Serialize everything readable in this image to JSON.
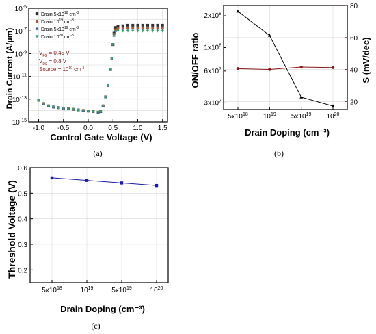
{
  "chart_data": [
    {
      "type": "scatter",
      "caption": "(a)",
      "xlabel": "Control Gate Voltage (V)",
      "ylabel": "Drain Current (A/μm)",
      "xlim": [
        -1.2,
        1.6
      ],
      "xticks": [
        "-1.0",
        "-0.5",
        "0.0",
        "0.5",
        "1.0",
        "1.5"
      ],
      "xtick_values": [
        -1.0,
        -0.5,
        0.0,
        0.5,
        1.0,
        1.5
      ],
      "ylog": true,
      "ylim_exp": [
        -15,
        -5
      ],
      "yticks": [
        {
          "base": "10",
          "exp": "-5",
          "e": -5
        },
        {
          "base": "10",
          "exp": "-7",
          "e": -7
        },
        {
          "base": "10",
          "exp": "-9",
          "e": -9
        },
        {
          "base": "10",
          "exp": "-11",
          "e": -11
        },
        {
          "base": "10",
          "exp": "-13",
          "e": -13
        },
        {
          "base": "10",
          "exp": "-15",
          "e": -15
        }
      ],
      "legend": {
        "placement": "top-left",
        "entries": [
          {
            "text": "Drain 5x10",
            "sup": "18",
            "unit": " cm",
            "usup": "-3",
            "color": "#333333",
            "marker": "square"
          },
          {
            "text": "Drain 10",
            "sup": "19",
            "unit": " cm",
            "usup": "-3",
            "color": "#b2553a",
            "marker": "circle"
          },
          {
            "text": "Drain 5x10",
            "sup": "19",
            "unit": " cm",
            "usup": "-3",
            "color": "#2f5fa8",
            "marker": "triangle-up"
          },
          {
            "text": "Drain 10",
            "sup": "20",
            "unit": " cm",
            "usup": "-3",
            "color": "#3aa26e",
            "marker": "triangle-down"
          }
        ]
      },
      "annotations": [
        {
          "a": "V",
          "sub": "FG",
          "b": " = 0.45 V"
        },
        {
          "a": "V",
          "sub": "DS",
          "b": " = 0.8 V"
        },
        {
          "a": "Source = 10",
          "sup": "19",
          "b": " cm",
          "sup2": "-3"
        }
      ],
      "x": [
        -1.0,
        -0.9,
        -0.8,
        -0.7,
        -0.6,
        -0.5,
        -0.4,
        -0.3,
        -0.2,
        -0.1,
        0.0,
        0.1,
        0.2,
        0.25,
        0.3,
        0.35,
        0.4,
        0.45,
        0.48,
        0.5,
        0.52,
        0.55,
        0.6,
        0.7,
        0.8,
        0.9,
        1.0,
        1.1,
        1.2,
        1.3,
        1.4,
        1.5
      ],
      "series": [
        {
          "log_y": [
            -13.1,
            -13.4,
            -13.6,
            -13.7,
            -13.75,
            -13.8,
            -13.85,
            -13.9,
            -13.95,
            -14.0,
            -14.05,
            -14.1,
            -14.15,
            -14.1,
            -13.6,
            -12.8,
            -11.8,
            -10.4,
            -9.4,
            -8.2,
            -7.2,
            -6.7,
            -6.6,
            -6.55,
            -6.5,
            -6.5,
            -6.5,
            -6.5,
            -6.5,
            -6.5,
            -6.5,
            -6.5
          ]
        },
        {
          "log_y": [
            -13.1,
            -13.4,
            -13.6,
            -13.7,
            -13.75,
            -13.8,
            -13.85,
            -13.9,
            -13.95,
            -14.0,
            -14.05,
            -14.1,
            -14.15,
            -14.1,
            -13.6,
            -12.8,
            -11.8,
            -10.4,
            -9.4,
            -8.2,
            -7.3,
            -6.9,
            -6.8,
            -6.75,
            -6.75,
            -6.75,
            -6.75,
            -6.75,
            -6.75,
            -6.75,
            -6.75,
            -6.75
          ]
        },
        {
          "log_y": [
            -13.1,
            -13.4,
            -13.6,
            -13.7,
            -13.75,
            -13.8,
            -13.85,
            -13.9,
            -13.95,
            -14.0,
            -14.05,
            -14.1,
            -14.15,
            -14.1,
            -13.6,
            -12.8,
            -11.8,
            -10.4,
            -9.4,
            -8.2,
            -7.4,
            -7.0,
            -6.95,
            -6.95,
            -6.95,
            -6.95,
            -6.95,
            -6.95,
            -6.95,
            -6.95,
            -6.95,
            -6.95
          ]
        },
        {
          "log_y": [
            -13.1,
            -13.4,
            -13.6,
            -13.7,
            -13.75,
            -13.8,
            -13.85,
            -13.9,
            -13.95,
            -14.0,
            -14.05,
            -14.1,
            -14.15,
            -14.1,
            -13.6,
            -12.8,
            -11.8,
            -10.4,
            -9.4,
            -8.2,
            -7.4,
            -7.05,
            -7.0,
            -7.0,
            -7.0,
            -7.0,
            -7.0,
            -7.0,
            -7.0,
            -7.0,
            -7.0,
            -7.0
          ]
        }
      ]
    },
    {
      "type": "line",
      "caption": "(b)",
      "xlabel": "Drain Doping (cm⁻³)",
      "ylabel_left": "ON/OFF ratio",
      "ylabel_right": "S (mV/dec)",
      "categories": [
        {
          "base": "5x10",
          "exp": "18"
        },
        {
          "base": "10",
          "exp": "19"
        },
        {
          "base": "5x10",
          "exp": "19"
        },
        {
          "base": "10",
          "exp": "20"
        }
      ],
      "left_log": true,
      "left_ylim": [
        26000000.0,
        250000000.0
      ],
      "left_ticks": [
        {
          "m": "3x10",
          "e": "7",
          "v": 30000000.0
        },
        {
          "m": "",
          "e": "",
          "v": 60000000.0,
          "label": "6x10",
          "le": "7"
        },
        {
          "m": "",
          "e": "",
          "v": 100000000.0,
          "label": "1x10",
          "le": "8"
        },
        {
          "m": "",
          "e": "",
          "v": 200000000.0,
          "label": "2x10",
          "le": "8"
        }
      ],
      "right_ylim": [
        15,
        80
      ],
      "right_ticks": [
        "20",
        "40",
        "60",
        "80"
      ],
      "right_tick_values": [
        20,
        40,
        60,
        80
      ],
      "series": [
        {
          "axis": "left",
          "color": "#000000",
          "marker": "triangle-up",
          "values": [
            220000000.0,
            130000000.0,
            34000000.0,
            28000000.0
          ]
        },
        {
          "axis": "right",
          "color": "#8b1a1a",
          "marker": "circle",
          "values": [
            40.5,
            40.0,
            41.5,
            41.2
          ]
        }
      ],
      "right_axis_color": "#8b1a1a"
    },
    {
      "type": "line",
      "caption": "(c)",
      "xlabel": "Drain Doping (cm⁻³)",
      "ylabel": "Threshold Voltage (V)",
      "categories": [
        {
          "base": "5x10",
          "exp": "18"
        },
        {
          "base": "10",
          "exp": "19"
        },
        {
          "base": "5x10",
          "exp": "19"
        },
        {
          "base": "10",
          "exp": "20"
        }
      ],
      "ylim": [
        0.15,
        0.6
      ],
      "yticks": [
        "0.2",
        "0.3",
        "0.4",
        "0.5",
        "0.6"
      ],
      "ytick_values": [
        0.2,
        0.3,
        0.4,
        0.5,
        0.6
      ],
      "series": [
        {
          "color": "#1a1aa8",
          "marker": "square",
          "values": [
            0.56,
            0.55,
            0.54,
            0.53
          ]
        }
      ],
      "ylabel_color": "#1a1aa8"
    }
  ]
}
